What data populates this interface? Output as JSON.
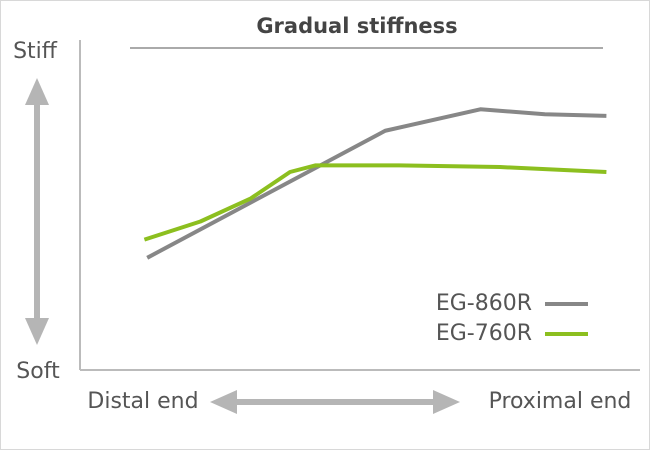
{
  "chart_data": {
    "type": "line",
    "title": "Gradual stiffness",
    "y_label_top": "Stiff",
    "y_label_bottom": "Soft",
    "x_label_left": "Distal end",
    "x_label_right": "Proximal end",
    "xlim": [
      0,
      100
    ],
    "ylim": [
      0,
      100
    ],
    "legend": "lower-right",
    "series": [
      {
        "name": "EG-860R",
        "color": "#878787",
        "x": [
          12,
          54.5,
          71.5,
          83,
          94
        ],
        "values": [
          34,
          72.5,
          79,
          77.5,
          77
        ]
      },
      {
        "name": "EG-760R",
        "color": "#8cbf1f",
        "x": [
          11.5,
          21.5,
          30.5,
          37.5,
          42,
          57,
          75,
          94
        ],
        "values": [
          39.5,
          45,
          52,
          60,
          62,
          62,
          61.5,
          60
        ]
      }
    ]
  }
}
